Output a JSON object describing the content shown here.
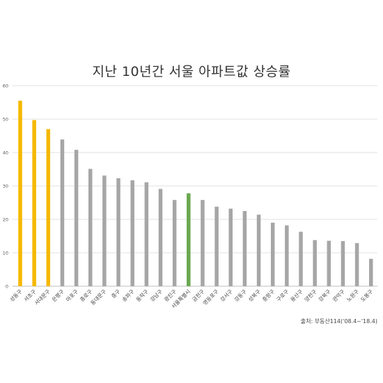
{
  "chart_data": {
    "type": "bar",
    "title": "지난 10년간 서울 아파트값 상승률",
    "source": "출처: 부동산114('08.4~'18.4)",
    "ylim": [
      0,
      60
    ],
    "yticks": [
      0,
      10,
      20,
      30,
      40,
      50,
      60
    ],
    "grid": true,
    "categories": [
      "성동구",
      "서초구",
      "서대문구",
      "은평구",
      "마포구",
      "종로구",
      "동대문구",
      "중구",
      "송파구",
      "동작구",
      "강남구",
      "광진구",
      "서울특별시",
      "금천구",
      "영등포구",
      "강서구",
      "강동구",
      "성북구",
      "중랑구",
      "구로구",
      "용산구",
      "양천구",
      "강북구",
      "관악구",
      "노원구",
      "도봉구"
    ],
    "values": [
      55.5,
      49.7,
      47.0,
      43.9,
      40.8,
      35.1,
      33.1,
      32.3,
      31.7,
      31.1,
      29.1,
      25.8,
      27.8,
      25.8,
      23.8,
      23.2,
      22.5,
      21.4,
      19.0,
      18.2,
      16.3,
      13.8,
      13.6,
      13.5,
      12.9,
      8.2
    ],
    "colors": {
      "highlight": "#F5B800",
      "seoul": "#6AA84F",
      "default": "#A6A6A6",
      "grid": "#E0E0E0",
      "axis_text": "#555555"
    },
    "highlight_categories": [
      "성동구",
      "서초구",
      "서대문구"
    ],
    "seoul_category": "서울특별시"
  }
}
